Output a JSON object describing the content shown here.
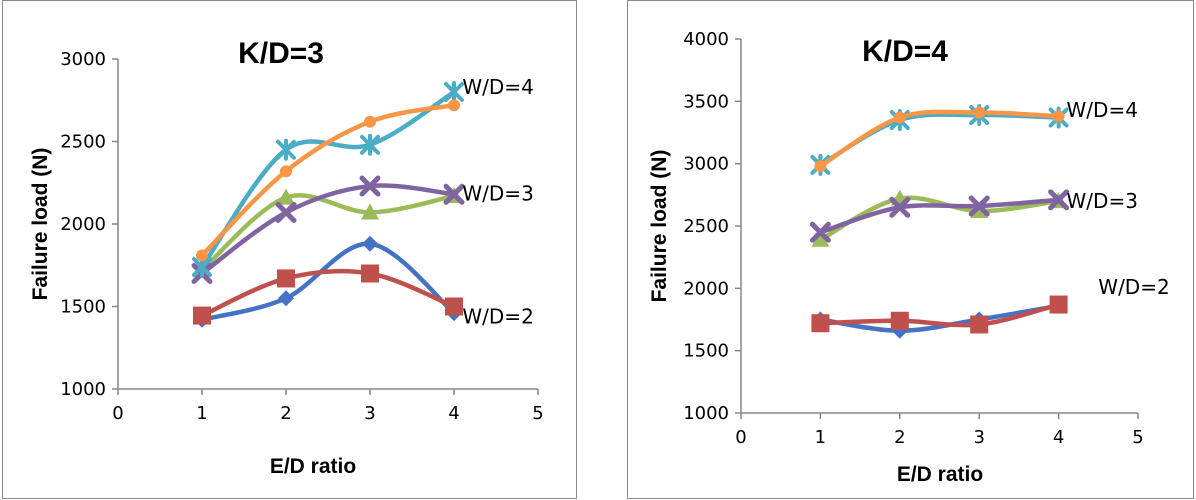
{
  "chart_data": [
    {
      "type": "line",
      "title": "K/D=3",
      "xlabel": "E/D ratio",
      "ylabel": "Failure load (N)",
      "xlim": [
        0,
        5
      ],
      "ylim": [
        1000,
        3000
      ],
      "x_ticks": [
        "0",
        "1",
        "2",
        "3",
        "4",
        "5"
      ],
      "y_ticks": [
        "1000",
        "1500",
        "2000",
        "2500",
        "3000"
      ],
      "grid": false,
      "x": [
        1,
        2,
        3,
        4
      ],
      "series": [
        {
          "marker": "diamond",
          "color": "#4472c4",
          "values": [
            1420,
            1550,
            1880,
            1460
          ]
        },
        {
          "marker": "square",
          "color": "#c0504d",
          "values": [
            1445,
            1670,
            1700,
            1500
          ]
        },
        {
          "marker": "triangle",
          "color": "#9bbb59",
          "values": [
            1720,
            2160,
            2070,
            2170
          ]
        },
        {
          "marker": "x",
          "color": "#8064a2",
          "values": [
            1700,
            2070,
            2230,
            2180
          ]
        },
        {
          "marker": "star",
          "color": "#4bacc6",
          "values": [
            1740,
            2450,
            2480,
            2800
          ]
        },
        {
          "marker": "circle",
          "color": "#f79646",
          "values": [
            1810,
            2320,
            2620,
            2720
          ]
        }
      ],
      "annotations": [
        {
          "text": "W/D=4",
          "x": 4.1,
          "y": 2830
        },
        {
          "text": "W/D=3",
          "x": 4.1,
          "y": 2185
        },
        {
          "text": "W/D=2",
          "x": 4.1,
          "y": 1440
        }
      ]
    },
    {
      "type": "line",
      "title": "K/D=4",
      "xlabel": "E/D ratio",
      "ylabel": "Failure load (N)",
      "xlim": [
        0,
        5
      ],
      "ylim": [
        1000,
        4000
      ],
      "x_ticks": [
        "0",
        "1",
        "2",
        "3",
        "4",
        "5"
      ],
      "y_ticks": [
        "1000",
        "1500",
        "2000",
        "2500",
        "3000",
        "3500",
        "4000"
      ],
      "grid": false,
      "x": [
        1,
        2,
        3,
        4
      ],
      "series": [
        {
          "marker": "diamond",
          "color": "#4472c4",
          "values": [
            1750,
            1660,
            1750,
            1860
          ]
        },
        {
          "marker": "square",
          "color": "#c0504d",
          "values": [
            1720,
            1740,
            1710,
            1870
          ]
        },
        {
          "marker": "triangle",
          "color": "#9bbb59",
          "values": [
            2390,
            2720,
            2620,
            2700
          ]
        },
        {
          "marker": "x",
          "color": "#8064a2",
          "values": [
            2450,
            2650,
            2660,
            2710
          ]
        },
        {
          "marker": "star",
          "color": "#4bacc6",
          "values": [
            2990,
            3350,
            3390,
            3370
          ]
        },
        {
          "marker": "circle",
          "color": "#f79646",
          "values": [
            2980,
            3370,
            3410,
            3380
          ]
        }
      ],
      "annotations": [
        {
          "text": "W/D=4",
          "x": 4.1,
          "y": 3430
        },
        {
          "text": "W/D=3",
          "x": 4.1,
          "y": 2700
        },
        {
          "text": "W/D=2",
          "x": 4.5,
          "y": 2010
        }
      ]
    }
  ]
}
